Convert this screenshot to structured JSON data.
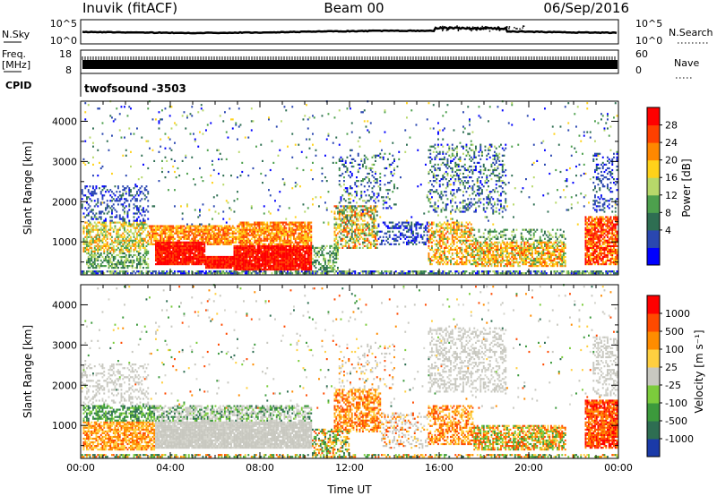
{
  "header": {
    "station": "Inuvik (fitACF)",
    "beam": "Beam 00",
    "date": "06/Sep/2016"
  },
  "nsky_panel": {
    "left_label": "N.Sky",
    "left_ticks": [
      "10^5",
      "10^0"
    ],
    "right_label": "N.Search",
    "right_ticks": [
      "10^5",
      "10^0"
    ]
  },
  "freq_panel": {
    "left_label_line1": "Freq.",
    "left_label_line2": "[MHz]",
    "left_ticks": [
      "18",
      "8"
    ],
    "right_label": "Nave",
    "right_ticks": [
      "60",
      "0"
    ]
  },
  "cpid": {
    "label": "CPID",
    "value": "twofsound -3503"
  },
  "chart_data": [
    {
      "type": "heatmap",
      "panel": "power",
      "ylabel": "Slant Range [km]",
      "xlabel": "",
      "y_ticks": [
        "1000",
        "2000",
        "3000",
        "4000"
      ],
      "colorbar_label": "Power [dB]",
      "colorbar_ticks": [
        "28",
        "24",
        "20",
        "16",
        "12",
        "8",
        "4"
      ],
      "colors": [
        "#0000ff",
        "#2a47b0",
        "#2e6e52",
        "#4da04d",
        "#b7d86a",
        "#ffd21a",
        "#ff8800",
        "#ff4000",
        "#ff0000"
      ],
      "ylim": [
        180,
        4500
      ],
      "xlim_hours": [
        0,
        24
      ]
    },
    {
      "type": "heatmap",
      "panel": "velocity",
      "ylabel": "Slant Range [km]",
      "xlabel": "Time UT",
      "x_ticks": [
        "00:00",
        "04:00",
        "08:00",
        "12:00",
        "16:00",
        "20:00",
        "00:00"
      ],
      "y_ticks": [
        "1000",
        "2000",
        "3000",
        "4000"
      ],
      "colorbar_label": "Velocity [m s⁻¹]",
      "colorbar_ticks": [
        "1000",
        "500",
        "100",
        "25",
        "-25",
        "-100",
        "-500",
        "-1000"
      ],
      "colors": [
        "#1a3aa8",
        "#2e6e52",
        "#3c9a3c",
        "#7ccc3c",
        "#c8c8c0",
        "#ffcf40",
        "#ff8c00",
        "#ff4a00",
        "#ff0000"
      ],
      "ylim": [
        180,
        4500
      ],
      "xlim_hours": [
        0,
        24
      ]
    }
  ]
}
